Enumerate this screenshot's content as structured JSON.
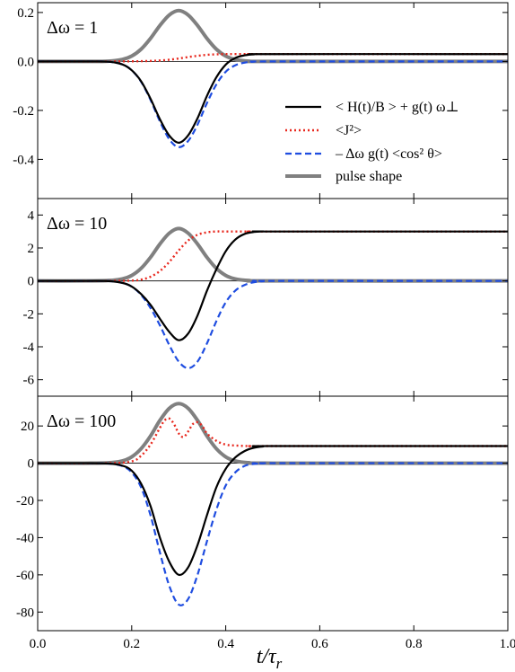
{
  "figure": {
    "xlabel": "t/τr",
    "xlabel_main": "t/τ",
    "xlabel_sub": "r"
  },
  "legend": {
    "entries": [
      {
        "key": "H",
        "label": "< H(t)/B > + g(t) ω⊥",
        "color": "#000000",
        "style": "solid"
      },
      {
        "key": "J",
        "label": "<J²>",
        "color": "#e8281e",
        "style": "dotted"
      },
      {
        "key": "C",
        "label": "– Δω g(t) <cos² θ>",
        "color": "#1f4de0",
        "style": "dashed"
      },
      {
        "key": "P",
        "label": "pulse shape",
        "color": "#808080",
        "style": "thick"
      }
    ]
  },
  "chart_data": [
    {
      "type": "line",
      "panel_label": "Δω = 1",
      "xlim": [
        0,
        1
      ],
      "ylim": [
        -0.56,
        0.24
      ],
      "yticks": [
        0.2,
        0.0,
        -0.2,
        -0.4
      ],
      "ytick_labels": [
        "0.2",
        "0.0",
        "-0.2",
        "-0.4"
      ],
      "xticks": [
        0,
        0.2,
        0.4,
        0.6,
        0.8,
        1.0
      ],
      "series": [
        {
          "key": "P",
          "x": [
            0,
            0.1,
            0.15,
            0.18,
            0.2,
            0.22,
            0.24,
            0.26,
            0.28,
            0.3,
            0.32,
            0.34,
            0.36,
            0.38,
            0.4,
            0.42,
            0.45,
            0.5,
            1.0
          ],
          "y": [
            0,
            0,
            0.001,
            0.008,
            0.022,
            0.05,
            0.094,
            0.147,
            0.19,
            0.208,
            0.19,
            0.147,
            0.094,
            0.05,
            0.022,
            0.008,
            0.001,
            0,
            0
          ]
        },
        {
          "key": "J",
          "x": [
            0,
            0.15,
            0.2,
            0.24,
            0.26,
            0.28,
            0.3,
            0.32,
            0.34,
            0.36,
            0.38,
            0.4,
            0.45,
            0.5,
            1.0
          ],
          "y": [
            0,
            0,
            0.0005,
            0.002,
            0.004,
            0.007,
            0.012,
            0.018,
            0.023,
            0.027,
            0.029,
            0.03,
            0.03,
            0.03,
            0.03
          ]
        },
        {
          "key": "C",
          "x": [
            0,
            0.1,
            0.15,
            0.18,
            0.2,
            0.22,
            0.24,
            0.26,
            0.28,
            0.3,
            0.32,
            0.34,
            0.36,
            0.38,
            0.4,
            0.42,
            0.44,
            0.46,
            0.5,
            1.0
          ],
          "y": [
            0,
            0,
            -0.001,
            -0.012,
            -0.036,
            -0.083,
            -0.157,
            -0.245,
            -0.318,
            -0.35,
            -0.325,
            -0.258,
            -0.17,
            -0.094,
            -0.042,
            -0.016,
            -0.005,
            -0.001,
            0,
            0
          ]
        },
        {
          "key": "H",
          "x": [
            0,
            0.1,
            0.15,
            0.18,
            0.2,
            0.22,
            0.24,
            0.26,
            0.28,
            0.3,
            0.32,
            0.34,
            0.36,
            0.38,
            0.4,
            0.42,
            0.44,
            0.46,
            0.5,
            1.0
          ],
          "y": [
            0,
            0,
            -0.001,
            -0.012,
            -0.036,
            -0.081,
            -0.152,
            -0.236,
            -0.303,
            -0.332,
            -0.302,
            -0.232,
            -0.141,
            -0.065,
            -0.013,
            0.014,
            0.025,
            0.029,
            0.03,
            0.03
          ]
        }
      ]
    },
    {
      "type": "line",
      "panel_label": "Δω = 10",
      "xlim": [
        0,
        1
      ],
      "ylim": [
        -7,
        5
      ],
      "yticks": [
        4,
        2,
        0,
        -2,
        -4,
        -6
      ],
      "ytick_labels": [
        "4",
        "2",
        "0",
        "-2",
        "-4",
        "-6"
      ],
      "xticks": [
        0,
        0.2,
        0.4,
        0.6,
        0.8,
        1.0
      ],
      "series": [
        {
          "key": "P",
          "x": [
            0,
            0.1,
            0.15,
            0.18,
            0.2,
            0.22,
            0.24,
            0.26,
            0.28,
            0.3,
            0.32,
            0.34,
            0.36,
            0.38,
            0.4,
            0.42,
            0.45,
            0.5,
            1.0
          ],
          "y": [
            0,
            0,
            0.02,
            0.12,
            0.33,
            0.76,
            1.43,
            2.24,
            2.9,
            3.18,
            2.9,
            2.24,
            1.43,
            0.76,
            0.33,
            0.12,
            0.02,
            0,
            0
          ]
        },
        {
          "key": "J",
          "x": [
            0,
            0.15,
            0.2,
            0.22,
            0.24,
            0.26,
            0.28,
            0.3,
            0.32,
            0.34,
            0.36,
            0.38,
            0.4,
            0.45,
            0.5,
            1.0
          ],
          "y": [
            0,
            0,
            0.02,
            0.08,
            0.25,
            0.6,
            1.15,
            1.85,
            2.45,
            2.8,
            2.95,
            3.0,
            3.0,
            3.0,
            3.0,
            3.0
          ]
        },
        {
          "key": "C",
          "x": [
            0,
            0.1,
            0.15,
            0.18,
            0.2,
            0.22,
            0.24,
            0.26,
            0.28,
            0.3,
            0.32,
            0.34,
            0.36,
            0.38,
            0.4,
            0.42,
            0.44,
            0.46,
            0.48,
            0.5,
            1.0
          ],
          "y": [
            0,
            0,
            -0.01,
            -0.12,
            -0.35,
            -0.85,
            -1.65,
            -2.7,
            -3.9,
            -4.9,
            -5.3,
            -4.9,
            -3.8,
            -2.45,
            -1.3,
            -0.6,
            -0.25,
            -0.08,
            -0.02,
            0,
            0
          ]
        },
        {
          "key": "H",
          "x": [
            0,
            0.1,
            0.15,
            0.18,
            0.2,
            0.22,
            0.24,
            0.26,
            0.28,
            0.3,
            0.32,
            0.34,
            0.36,
            0.38,
            0.4,
            0.42,
            0.44,
            0.46,
            0.48,
            0.5,
            1.0
          ],
          "y": [
            0,
            0,
            -0.01,
            -0.12,
            -0.34,
            -0.8,
            -1.45,
            -2.3,
            -3.1,
            -3.6,
            -3.2,
            -2.1,
            -0.6,
            0.7,
            1.8,
            2.5,
            2.85,
            2.97,
            3.0,
            3.0,
            3.0
          ]
        }
      ]
    },
    {
      "type": "line",
      "panel_label": "Δω = 100",
      "xlim": [
        0,
        1
      ],
      "ylim": [
        -90,
        36
      ],
      "yticks": [
        20,
        0,
        -20,
        -40,
        -60,
        -80
      ],
      "ytick_labels": [
        "20",
        "0",
        "-20",
        "-40",
        "-60",
        "-80"
      ],
      "xticks": [
        0,
        0.2,
        0.4,
        0.6,
        0.8,
        1.0
      ],
      "xtick_labels": [
        "0.0",
        "0.2",
        "0.4",
        "0.6",
        "0.8",
        "1.0"
      ],
      "series": [
        {
          "key": "P",
          "x": [
            0,
            0.1,
            0.15,
            0.18,
            0.2,
            0.22,
            0.24,
            0.26,
            0.28,
            0.3,
            0.32,
            0.34,
            0.36,
            0.38,
            0.4,
            0.42,
            0.45,
            0.5,
            1.0
          ],
          "y": [
            0,
            0,
            0.2,
            1.2,
            3.4,
            7.8,
            14.6,
            23.0,
            29.5,
            32.0,
            29.5,
            23.0,
            14.6,
            7.8,
            3.4,
            1.2,
            0.2,
            0,
            0
          ]
        },
        {
          "key": "J",
          "x": [
            0,
            0.15,
            0.2,
            0.22,
            0.24,
            0.26,
            0.27,
            0.28,
            0.29,
            0.3,
            0.31,
            0.32,
            0.33,
            0.34,
            0.35,
            0.36,
            0.38,
            0.4,
            0.42,
            0.45,
            0.5,
            1.0
          ],
          "y": [
            0,
            0,
            1,
            4,
            10,
            19,
            23,
            24,
            21,
            16,
            14,
            17,
            21,
            22,
            20,
            16,
            12,
            10,
            9.5,
            9.2,
            9.2,
            9.2
          ]
        },
        {
          "key": "C",
          "x": [
            0,
            0.1,
            0.15,
            0.18,
            0.2,
            0.22,
            0.24,
            0.26,
            0.28,
            0.3,
            0.32,
            0.34,
            0.36,
            0.38,
            0.4,
            0.42,
            0.44,
            0.46,
            0.48,
            0.5,
            1.0
          ],
          "y": [
            0,
            0,
            -0.2,
            -1.5,
            -5,
            -13,
            -28,
            -48,
            -66,
            -76,
            -73,
            -60,
            -42,
            -25,
            -12,
            -5,
            -1.5,
            -0.4,
            -0.1,
            0,
            0
          ]
        },
        {
          "key": "H",
          "x": [
            0,
            0.1,
            0.15,
            0.18,
            0.2,
            0.22,
            0.24,
            0.26,
            0.28,
            0.3,
            0.32,
            0.34,
            0.36,
            0.38,
            0.4,
            0.42,
            0.44,
            0.46,
            0.48,
            0.5,
            1.0
          ],
          "y": [
            0,
            0,
            -0.2,
            -1.3,
            -4,
            -11,
            -23,
            -40,
            -53,
            -60,
            -56,
            -44,
            -28,
            -13,
            -3,
            3,
            6.5,
            8.3,
            9.0,
            9.2,
            9.2
          ]
        }
      ]
    }
  ]
}
